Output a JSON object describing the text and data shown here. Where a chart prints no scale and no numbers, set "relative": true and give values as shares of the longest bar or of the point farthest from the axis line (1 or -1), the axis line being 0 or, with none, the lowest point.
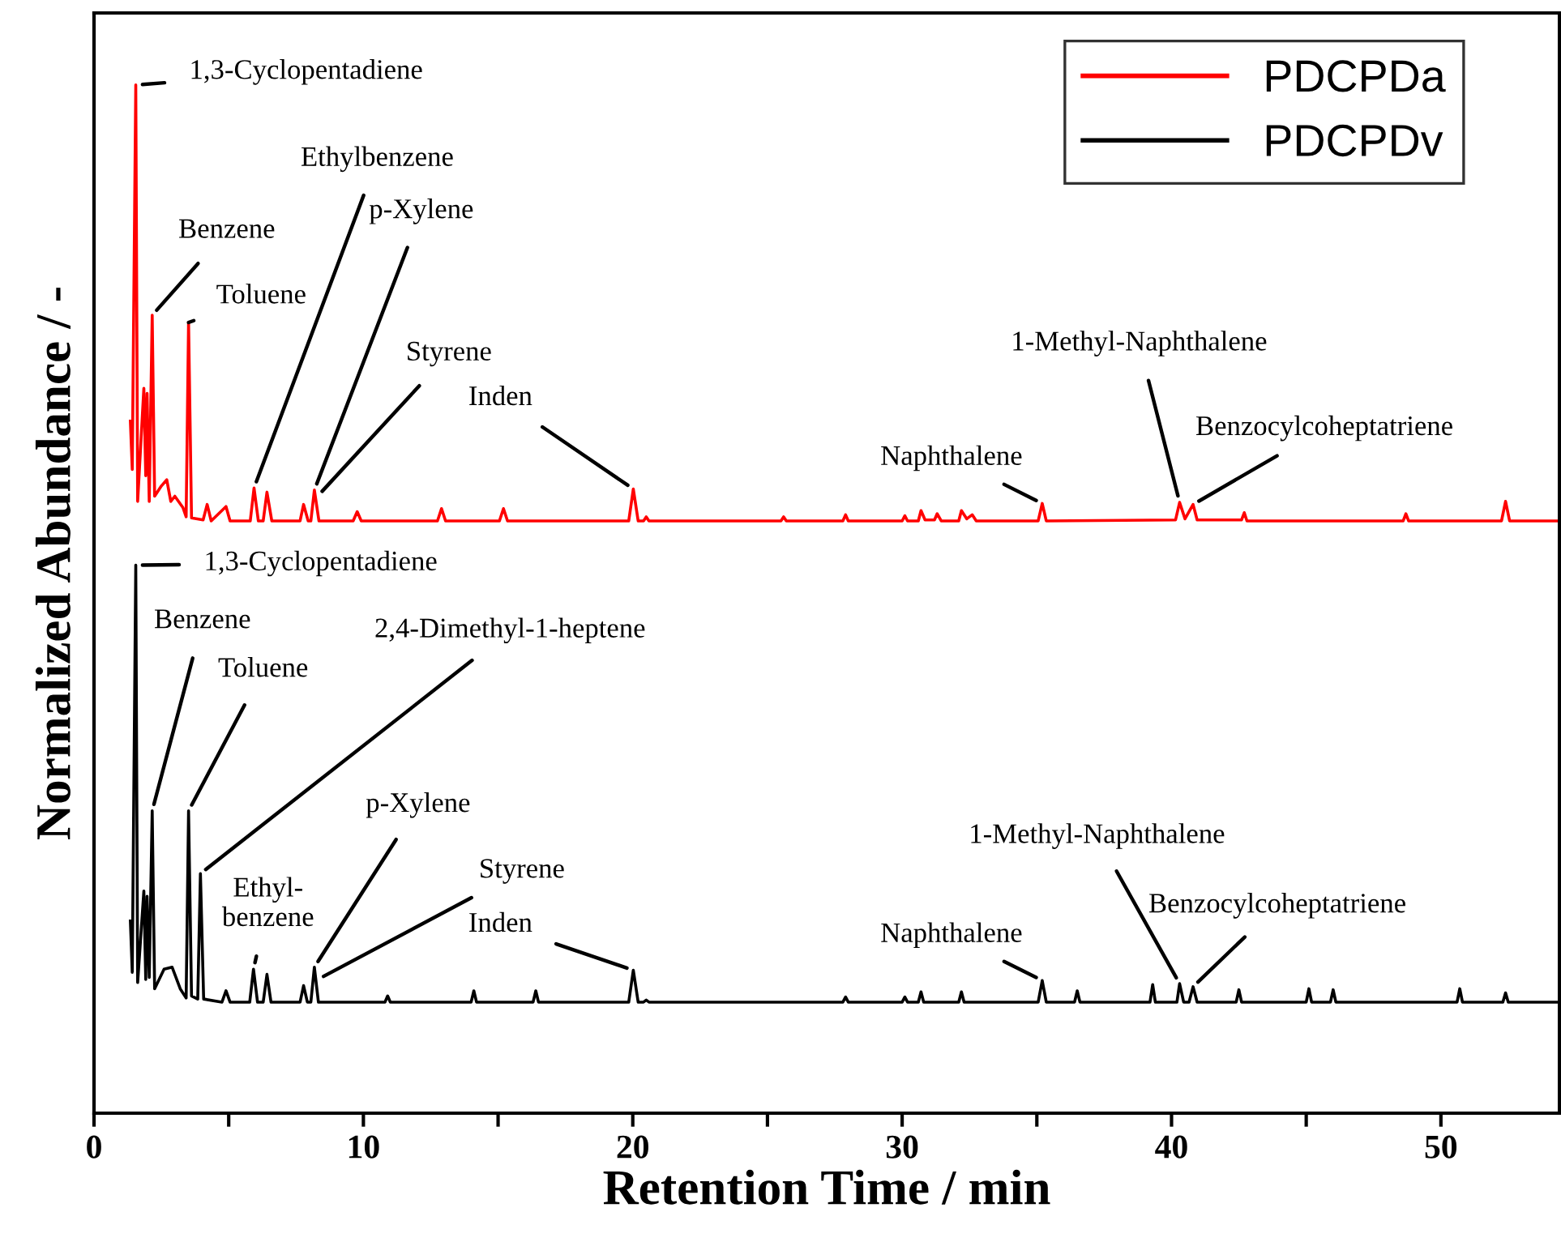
{
  "chart_data": {
    "type": "line",
    "relative": true,
    "xlabel": "Retention Time / min",
    "ylabel": "Normalized Abundance / -",
    "xlim": [
      0,
      54.4
    ],
    "xticks": [
      0,
      {
        "value": 5,
        "label": null
      },
      10,
      {
        "value": 15,
        "label": null
      },
      20,
      {
        "value": 25,
        "label": null
      },
      30,
      {
        "value": 35,
        "label": null
      },
      40,
      {
        "value": 45,
        "label": null
      },
      50
    ],
    "legend": "top right",
    "grid": false,
    "marker": "none",
    "line_style": "solid",
    "tick_labels": "x",
    "series": [
      {
        "name": "PDCPDa",
        "color": "#ff0000",
        "x": [
          1.35,
          1.42,
          1.55,
          1.62,
          1.85,
          1.92,
          1.97,
          2.05,
          2.16,
          2.25,
          2.5,
          2.7,
          2.85,
          3.0,
          3.3,
          3.42,
          3.51,
          3.62,
          4.05,
          4.2,
          4.35,
          4.9,
          5.05,
          5.8,
          5.94,
          6.1,
          6.28,
          6.42,
          6.6,
          7.65,
          7.78,
          7.95,
          8.05,
          8.18,
          8.35,
          9.62,
          9.77,
          9.92,
          12.75,
          12.9,
          13.05,
          15.05,
          15.2,
          15.35,
          19.85,
          20.02,
          20.2,
          20.4,
          20.5,
          20.6,
          25.5,
          25.6,
          25.7,
          27.8,
          27.9,
          28.0,
          30.0,
          30.1,
          30.2,
          30.6,
          30.7,
          30.85,
          31.2,
          31.3,
          31.45,
          32.1,
          32.2,
          32.4,
          32.6,
          32.75,
          35.05,
          35.2,
          35.35,
          40.15,
          40.3,
          40.5,
          40.8,
          40.95,
          42.6,
          42.7,
          42.8,
          48.6,
          48.7,
          48.8,
          52.25,
          52.4,
          52.55,
          54.4
        ],
        "values": [
          0.673,
          0.626,
          1.0,
          0.595,
          0.705,
          0.62,
          0.7,
          0.595,
          0.776,
          0.6,
          0.61,
          0.616,
          0.595,
          0.6,
          0.589,
          0.58,
          0.769,
          0.579,
          0.577,
          0.592,
          0.576,
          0.59,
          0.576,
          0.576,
          0.608,
          0.576,
          0.576,
          0.604,
          0.576,
          0.576,
          0.592,
          0.576,
          0.576,
          0.606,
          0.576,
          0.576,
          0.585,
          0.576,
          0.576,
          0.588,
          0.576,
          0.576,
          0.588,
          0.576,
          0.576,
          0.607,
          0.576,
          0.576,
          0.58,
          0.576,
          0.576,
          0.58,
          0.576,
          0.576,
          0.582,
          0.576,
          0.576,
          0.581,
          0.576,
          0.576,
          0.586,
          0.577,
          0.577,
          0.583,
          0.576,
          0.576,
          0.586,
          0.578,
          0.582,
          0.576,
          0.576,
          0.593,
          0.576,
          0.577,
          0.594,
          0.578,
          0.592,
          0.577,
          0.577,
          0.584,
          0.576,
          0.576,
          0.583,
          0.576,
          0.576,
          0.595,
          0.576,
          0.576
        ]
      },
      {
        "name": "PDCPDv",
        "color": "#000000",
        "x": [
          1.35,
          1.42,
          1.55,
          1.62,
          1.85,
          1.92,
          1.97,
          2.05,
          2.16,
          2.25,
          2.6,
          2.9,
          3.2,
          3.42,
          3.51,
          3.62,
          3.85,
          3.95,
          4.07,
          4.75,
          4.9,
          5.05,
          5.78,
          5.92,
          6.07,
          6.28,
          6.42,
          6.57,
          7.65,
          7.78,
          7.92,
          8.05,
          8.18,
          8.33,
          10.8,
          10.9,
          11.0,
          14.0,
          14.1,
          14.2,
          16.3,
          16.4,
          16.5,
          19.85,
          20.02,
          20.2,
          20.4,
          20.5,
          20.6,
          27.8,
          27.9,
          28.0,
          30.0,
          30.1,
          30.2,
          30.6,
          30.7,
          30.8,
          32.1,
          32.2,
          32.3,
          35.05,
          35.2,
          35.35,
          36.4,
          36.5,
          36.6,
          39.2,
          39.3,
          39.4,
          40.2,
          40.3,
          40.45,
          40.65,
          40.8,
          40.95,
          42.4,
          42.5,
          42.6,
          45.0,
          45.1,
          45.2,
          45.9,
          46.0,
          46.1,
          50.6,
          50.7,
          50.8,
          52.3,
          52.4,
          52.5,
          54.4
        ],
        "values": [
          0.187,
          0.137,
          0.533,
          0.127,
          0.216,
          0.13,
          0.211,
          0.132,
          0.294,
          0.121,
          0.14,
          0.142,
          0.121,
          0.112,
          0.294,
          0.114,
          0.111,
          0.233,
          0.111,
          0.108,
          0.119,
          0.108,
          0.108,
          0.14,
          0.108,
          0.108,
          0.135,
          0.108,
          0.108,
          0.124,
          0.108,
          0.108,
          0.142,
          0.108,
          0.108,
          0.114,
          0.108,
          0.108,
          0.119,
          0.108,
          0.108,
          0.119,
          0.108,
          0.108,
          0.139,
          0.108,
          0.108,
          0.11,
          0.108,
          0.108,
          0.113,
          0.108,
          0.108,
          0.113,
          0.108,
          0.108,
          0.118,
          0.108,
          0.108,
          0.118,
          0.108,
          0.108,
          0.129,
          0.108,
          0.108,
          0.119,
          0.108,
          0.108,
          0.125,
          0.108,
          0.108,
          0.126,
          0.108,
          0.108,
          0.123,
          0.108,
          0.108,
          0.12,
          0.108,
          0.108,
          0.121,
          0.108,
          0.108,
          0.12,
          0.108,
          0.108,
          0.121,
          0.108,
          0.108,
          0.117,
          0.108,
          0.108
        ]
      }
    ],
    "annotations": [
      {
        "text": "1,3-Cyclopentadiene",
        "x": 1.55,
        "y": 1.0
      },
      {
        "text": "Benzene",
        "x": 2.16,
        "y": 0.776
      },
      {
        "text": "Toluene",
        "x": 3.51,
        "y": 0.769
      },
      {
        "text": "Ethylbenzene",
        "x": 5.94,
        "y": 0.608
      },
      {
        "text": "p-Xylene",
        "x": 8.18,
        "y": 0.606
      },
      {
        "text": "Styrene",
        "x": 8.3,
        "y": 0.6
      },
      {
        "text": "Inden",
        "x": 20.02,
        "y": 0.607
      },
      {
        "text": "Naphthalene",
        "x": 35.2,
        "y": 0.593
      },
      {
        "text": "1-Methyl-Naphthalene",
        "x": 40.3,
        "y": 0.594
      },
      {
        "text": "Benzocylcoheptatriene",
        "x": 40.8,
        "y": 0.592
      },
      {
        "text": "1,3-Cyclopentadiene",
        "x": 1.55,
        "y": 0.533
      },
      {
        "text": "Benzene",
        "x": 2.16,
        "y": 0.294
      },
      {
        "text": "Toluene",
        "x": 3.51,
        "y": 0.294
      },
      {
        "text": "2,4-Dimethyl-1-heptene",
        "x": 3.95,
        "y": 0.233
      },
      {
        "text": "Ethyl-\nbenzene",
        "x": 5.92,
        "y": 0.14
      },
      {
        "text": "p-Xylene",
        "x": 8.18,
        "y": 0.142
      },
      {
        "text": "Styrene",
        "x": 8.3,
        "y": 0.13
      },
      {
        "text": "Inden",
        "x": 20.02,
        "y": 0.139
      },
      {
        "text": "Naphthalene",
        "x": 35.2,
        "y": 0.129
      },
      {
        "text": "1-Methyl-Naphthalene",
        "x": 40.3,
        "y": 0.126
      },
      {
        "text": "Benzocylcoheptatriene",
        "x": 40.8,
        "y": 0.123
      }
    ]
  }
}
